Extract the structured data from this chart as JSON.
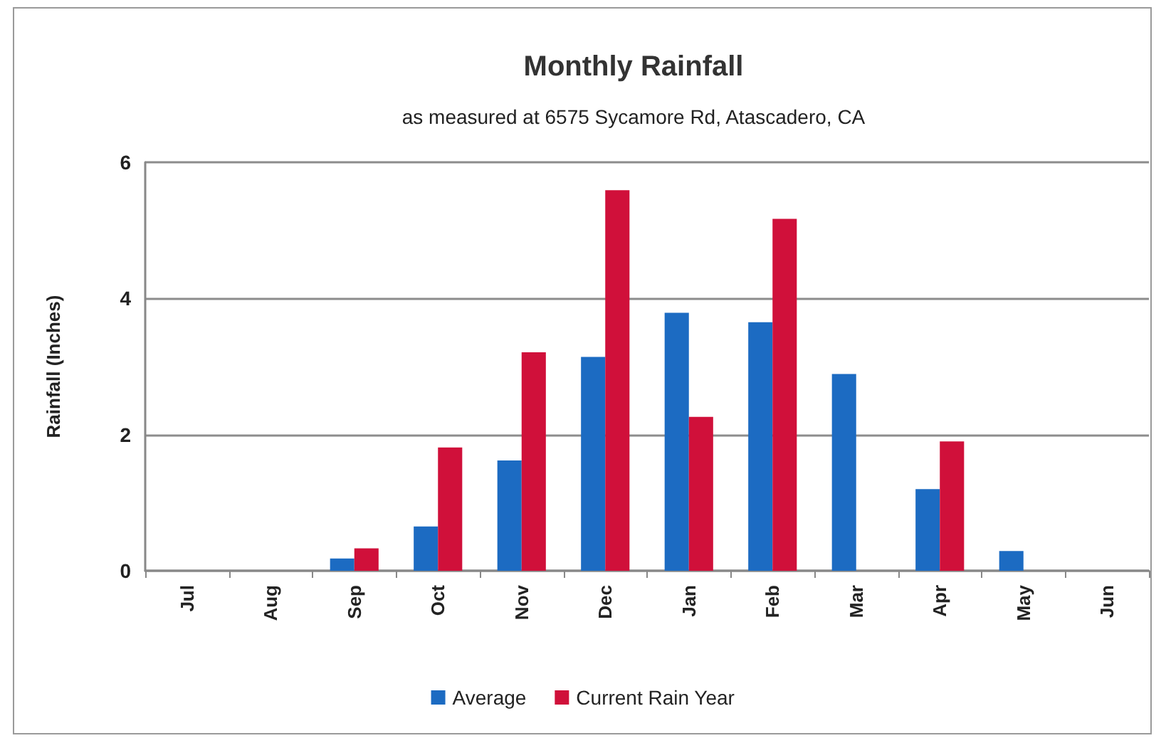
{
  "chart_data": {
    "type": "bar",
    "title": "Monthly Rainfall",
    "subtitle": "as measured at 6575 Sycamore Rd, Atascadero, CA",
    "ylabel": "Rainfall (Inches)",
    "categories": [
      "Jul",
      "Aug",
      "Sep",
      "Oct",
      "Nov",
      "Dec",
      "Jan",
      "Feb",
      "Mar",
      "Apr",
      "May",
      "Jun"
    ],
    "series": [
      {
        "name": "Average",
        "color": "#1c6bc2",
        "values": [
          0,
          0,
          0.18,
          0.65,
          1.62,
          3.14,
          3.79,
          3.65,
          2.89,
          1.2,
          0.29,
          0
        ]
      },
      {
        "name": "Current Rain Year",
        "color": "#d0103a",
        "values": [
          0,
          0,
          0.33,
          1.81,
          3.21,
          5.59,
          2.26,
          5.17,
          0,
          1.9,
          0,
          0
        ]
      }
    ],
    "ylim": [
      0,
      6
    ],
    "yticks": [
      0,
      2,
      4,
      6
    ],
    "grid": "y",
    "legend": "bottom"
  }
}
